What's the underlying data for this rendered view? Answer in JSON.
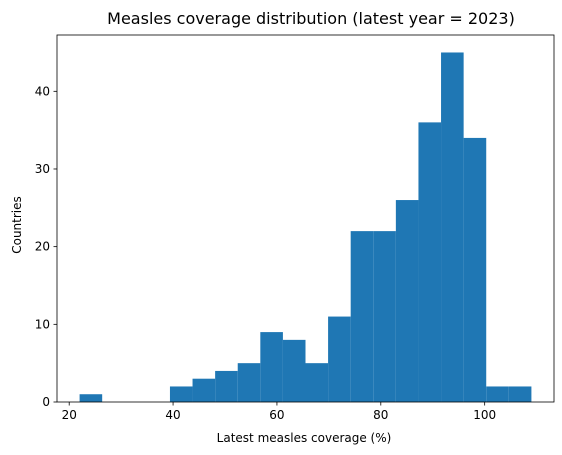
{
  "chart_data": {
    "type": "bar",
    "title": "Measles coverage distribution (latest year = 2023)",
    "xlabel": "Latest measles coverage (%)",
    "ylabel": "Countries",
    "bin_edges": [
      22,
      26.35,
      30.7,
      35.05,
      39.4,
      43.75,
      48.1,
      52.45,
      56.8,
      61.15,
      65.5,
      69.85,
      74.2,
      78.55,
      82.9,
      87.25,
      91.6,
      95.95,
      100.3,
      104.65,
      109
    ],
    "values": [
      1,
      0,
      0,
      0,
      2,
      3,
      4,
      5,
      9,
      8,
      5,
      11,
      22,
      22,
      26,
      36,
      45,
      34,
      2,
      2
    ],
    "xlim": [
      17.65,
      113.35
    ],
    "ylim": [
      0,
      47.25
    ],
    "xticks": [
      20,
      40,
      60,
      80,
      100
    ],
    "yticks": [
      0,
      10,
      20,
      30,
      40
    ],
    "bar_color": "#1f77b4",
    "grid": false
  }
}
